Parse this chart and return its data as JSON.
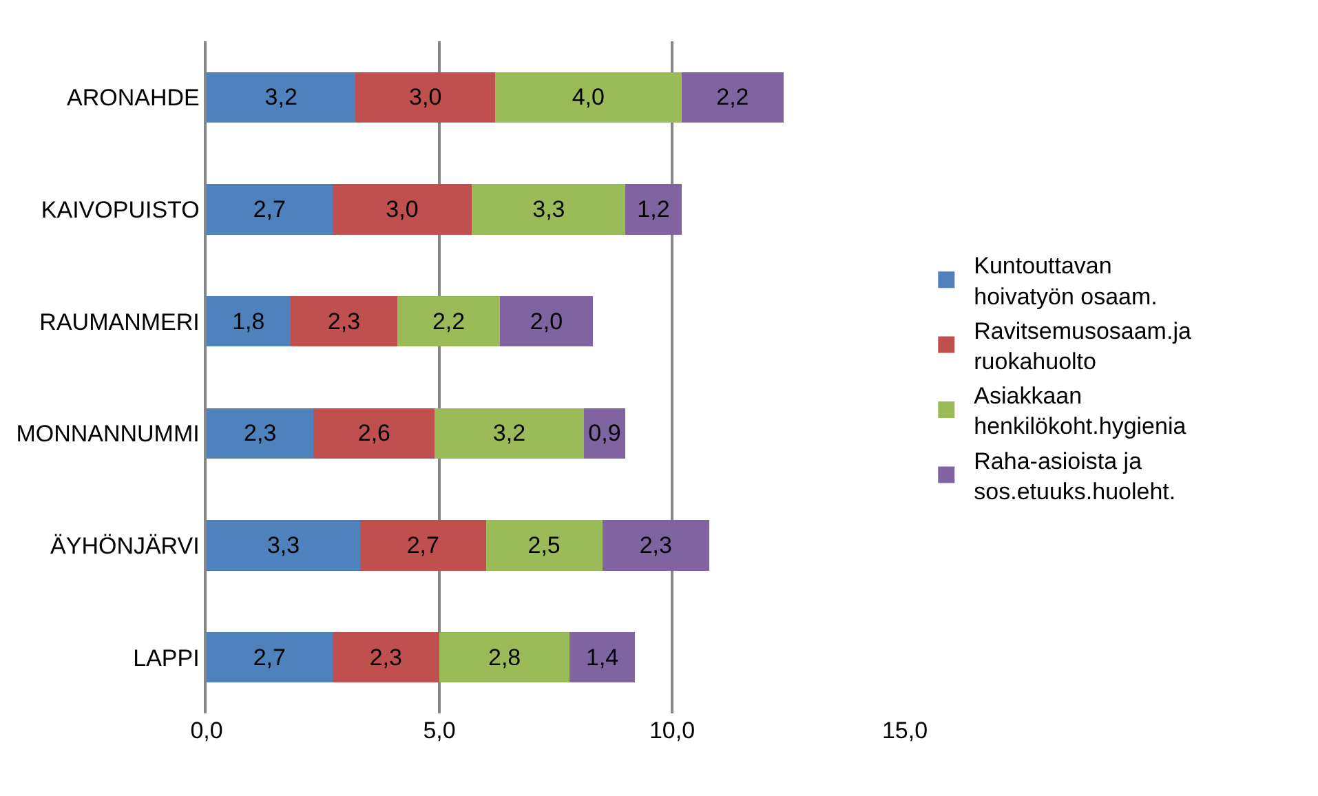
{
  "chart_data": {
    "type": "bar",
    "orientation": "horizontal",
    "stacked": true,
    "categories": [
      "ARONAHDE",
      "KAIVOPUISTO",
      "RAUMANMERI",
      "MONNANNUMMI",
      "ÄYHÖNJÄRVI",
      "LAPPI"
    ],
    "series": [
      {
        "name": "Kuntouttavan hoivatyön osaam.",
        "color": "#4f81bd",
        "values": [
          3.2,
          2.7,
          1.8,
          2.3,
          3.3,
          2.7
        ],
        "value_labels": [
          "3,2",
          "2,7",
          "1,8",
          "2,3",
          "3,3",
          "2,7"
        ]
      },
      {
        "name": "Ravitsemusosaam.ja ruokahuolto",
        "color": "#c0504d",
        "values": [
          3.0,
          3.0,
          2.3,
          2.6,
          2.7,
          2.3
        ],
        "value_labels": [
          "3,0",
          "3,0",
          "2,3",
          "2,6",
          "2,7",
          "2,3"
        ]
      },
      {
        "name": "Asiakkaan henkilökoht.hygienia",
        "color": "#9bbb59",
        "values": [
          4.0,
          3.3,
          2.2,
          3.2,
          2.5,
          2.8
        ],
        "value_labels": [
          "4,0",
          "3,3",
          "2,2",
          "3,2",
          "2,5",
          "2,8"
        ]
      },
      {
        "name": "Raha-asioista ja sos.etuuks.huoleht.",
        "color": "#8064a2",
        "values": [
          2.2,
          1.2,
          2.0,
          0.9,
          2.3,
          1.4
        ],
        "value_labels": [
          "2,2",
          "1,2",
          "2,0",
          "0,9",
          "2,3",
          "1,4"
        ]
      }
    ],
    "xlim": [
      0,
      15
    ],
    "xticks": [
      {
        "value": 0,
        "label": "0,0"
      },
      {
        "value": 5,
        "label": "5,0"
      },
      {
        "value": 10,
        "label": "10,0"
      },
      {
        "value": 15,
        "label": "15,0"
      }
    ],
    "grid": "x",
    "legend": "right"
  }
}
